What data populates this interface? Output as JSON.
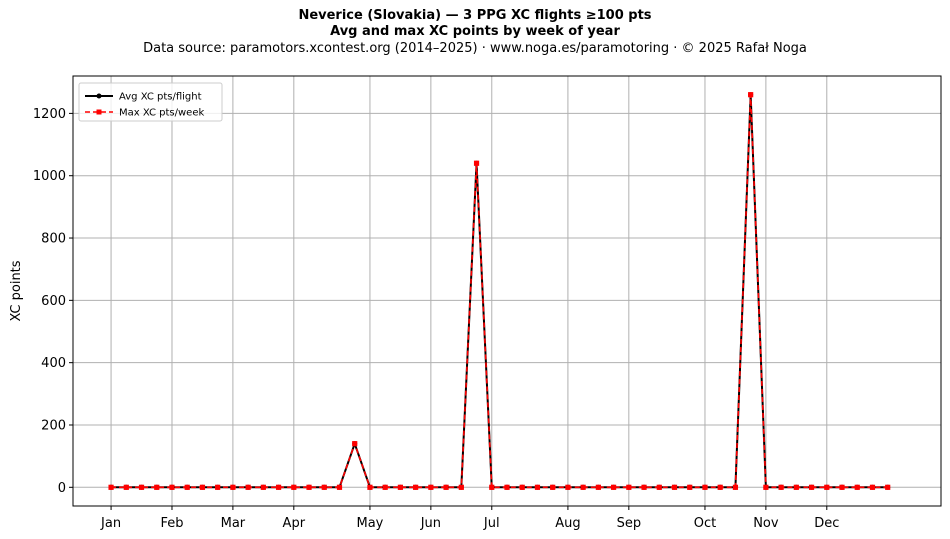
{
  "header": {
    "title": "Neverice (Slovakia)  —  3 PPG XC flights ≥100 pts",
    "subtitle": "Avg and max XC points by week of year",
    "source": "Data source: paramotors.xcontest.org (2014–2025)  ·  www.noga.es/paramotoring  ·  © 2025 Rafał Noga"
  },
  "chart_data": {
    "type": "line",
    "title": "Neverice (Slovakia)  —  3 PPG XC flights ≥100 pts",
    "subtitle": "Avg and max XC points by week of year",
    "xlabel": "",
    "ylabel": "XC points",
    "x": [
      1,
      2,
      3,
      4,
      5,
      6,
      7,
      8,
      9,
      10,
      11,
      12,
      13,
      14,
      15,
      16,
      17,
      18,
      19,
      20,
      21,
      22,
      23,
      24,
      25,
      26,
      27,
      28,
      29,
      30,
      31,
      32,
      33,
      34,
      35,
      36,
      37,
      38,
      39,
      40,
      41,
      42,
      43,
      44,
      45,
      46,
      47,
      48,
      49,
      50,
      51,
      52
    ],
    "xlim": [
      -1.5,
      55.5
    ],
    "ylim": [
      -60,
      1320
    ],
    "month_ticks": [
      {
        "week": 1,
        "label": "Jan"
      },
      {
        "week": 5,
        "label": "Feb"
      },
      {
        "week": 9,
        "label": "Mar"
      },
      {
        "week": 13,
        "label": "Apr"
      },
      {
        "week": 18,
        "label": "May"
      },
      {
        "week": 22,
        "label": "Jun"
      },
      {
        "week": 26,
        "label": "Jul"
      },
      {
        "week": 31,
        "label": "Aug"
      },
      {
        "week": 35,
        "label": "Sep"
      },
      {
        "week": 40,
        "label": "Oct"
      },
      {
        "week": 44,
        "label": "Nov"
      },
      {
        "week": 48,
        "label": "Dec"
      }
    ],
    "y_ticks": [
      0,
      200,
      400,
      600,
      800,
      1000,
      1200
    ],
    "grid": true,
    "legend_position": "top-left",
    "series": [
      {
        "name": "Avg XC pts/flight",
        "color": "#000000",
        "style": "solid",
        "marker": "circle",
        "values": [
          0,
          0,
          0,
          0,
          0,
          0,
          0,
          0,
          0,
          0,
          0,
          0,
          0,
          0,
          0,
          0,
          140,
          0,
          0,
          0,
          0,
          0,
          0,
          0,
          1040,
          0,
          0,
          0,
          0,
          0,
          0,
          0,
          0,
          0,
          0,
          0,
          0,
          0,
          0,
          0,
          0,
          0,
          1260,
          0,
          0,
          0,
          0,
          0,
          0,
          0,
          0,
          0
        ]
      },
      {
        "name": "Max XC pts/week",
        "color": "#ff0000",
        "style": "dashed",
        "marker": "square",
        "values": [
          0,
          0,
          0,
          0,
          0,
          0,
          0,
          0,
          0,
          0,
          0,
          0,
          0,
          0,
          0,
          0,
          140,
          0,
          0,
          0,
          0,
          0,
          0,
          0,
          1040,
          0,
          0,
          0,
          0,
          0,
          0,
          0,
          0,
          0,
          0,
          0,
          0,
          0,
          0,
          0,
          0,
          0,
          1260,
          0,
          0,
          0,
          0,
          0,
          0,
          0,
          0,
          0
        ]
      }
    ]
  }
}
